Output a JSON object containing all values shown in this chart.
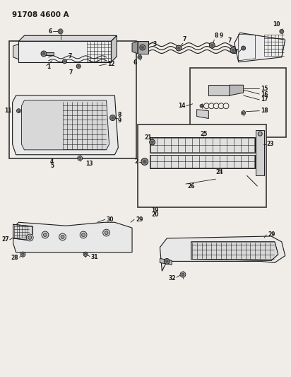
{
  "title": "91708 4600 A",
  "bg_color": "#f0ede8",
  "line_color": "#1a1a1a",
  "text_color": "#1a1a1a",
  "fig_width": 4.12,
  "fig_height": 5.33,
  "dpi": 100
}
